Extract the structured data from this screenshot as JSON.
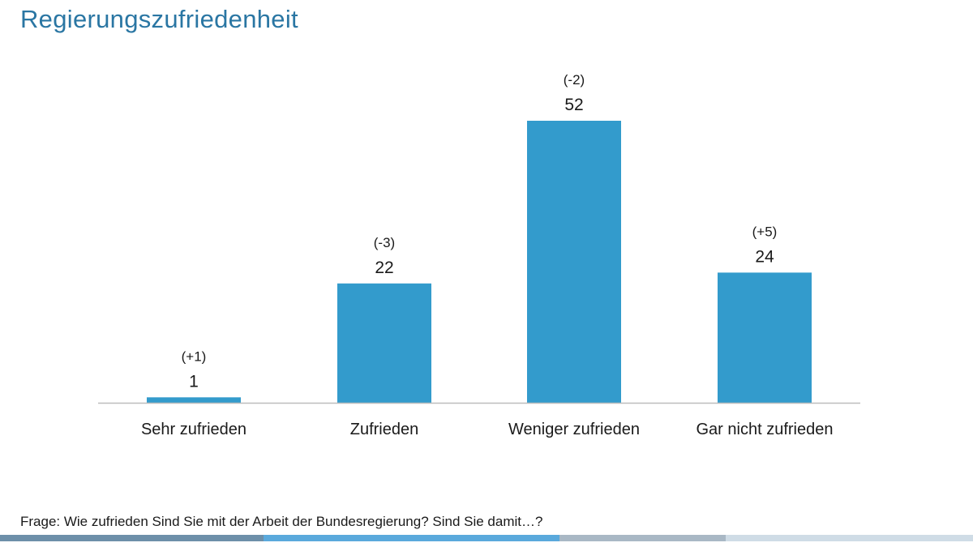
{
  "slide": {
    "title": "Regierungszufriedenheit",
    "question": "Frage: Wie zufrieden Sind Sie mit der Arbeit der Bundesregierung? Sind Sie damit…?"
  },
  "colors": {
    "title": "#2a76a3",
    "bar": "#339bcc",
    "axis": "#bdbdbd",
    "footer": [
      "#6d8fa9",
      "#5aa9dc",
      "#a9b8c5",
      "#cfdce6"
    ]
  },
  "chart_data": {
    "type": "bar",
    "title": "Regierungszufriedenheit",
    "xlabel": "",
    "ylabel": "",
    "ylim": [
      0,
      52
    ],
    "grid": false,
    "legend": "none",
    "categories": [
      "Sehr zufrieden",
      "Zufrieden",
      "Weniger zufrieden",
      "Gar nicht zufrieden"
    ],
    "values": [
      1,
      22,
      52,
      24
    ],
    "value_labels": [
      "1",
      "22",
      "52",
      "24"
    ],
    "change_labels": [
      "(+1)",
      "(-3)",
      "(-2)",
      "(+5)"
    ]
  }
}
